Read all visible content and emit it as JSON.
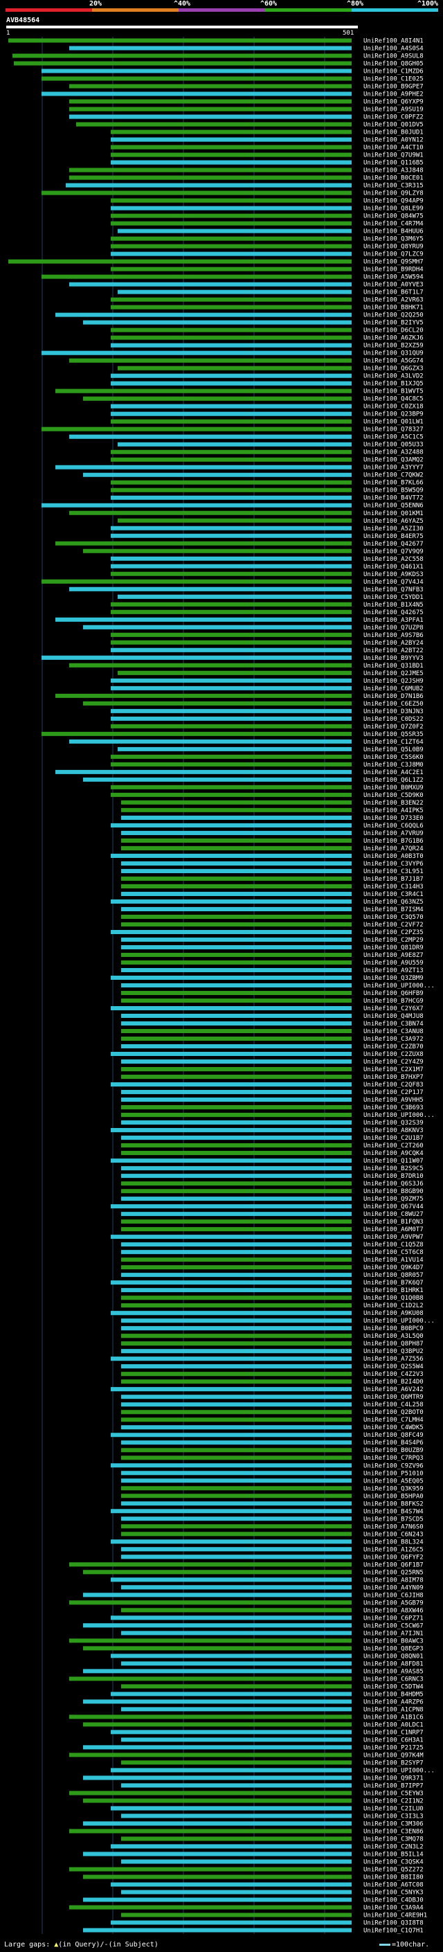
{
  "scale": {
    "labels": [
      "20%",
      "^40%",
      "^60%",
      "^80%",
      "^100%"
    ]
  },
  "colors": {
    "cyan": "#33c3d8",
    "green": "#2e9a1a",
    "grid": "#1f3f66",
    "marker": "#ffff66",
    "cyan_label": "#7fd8e8"
  },
  "query": {
    "title": "AVB48564",
    "start": "1",
    "end": "501"
  },
  "hits": [
    "UniRef100_A8I4N1",
    "UniRef100_A4S0S4",
    "UniRef100_A9SUL8",
    "UniRef100_Q8GH05",
    "UniRef100_C1MZD6",
    "UniRef100_C1E025",
    "UniRef100_B9GPE7",
    "UniRef100_A9PHE2",
    "UniRef100_Q6YXP9",
    "UniRef100_A9SU19",
    "UniRef100_C0PFZ2",
    "UniRef100_Q01DV5",
    "UniRef100_B0JUD1",
    "UniRef100_A0YN12",
    "UniRef100_A4CT10",
    "UniRef100_Q7U9W1",
    "UniRef100_Q116B5",
    "UniRef100_A3J848",
    "UniRef100_B0CE01",
    "UniRef100_C3R315",
    "UniRef100_Q9LZY8",
    "UniRef100_Q94AP9",
    "UniRef100_Q8LE99",
    "UniRef100_Q84W75",
    "UniRef100_C4R7M4",
    "UniRef100_B4HUU6",
    "UniRef100_Q3M6Y5",
    "UniRef100_Q8YRU9",
    "UniRef100_Q7LZC9",
    "UniRef100_Q9SMH7",
    "UniRef100_B9RDH4",
    "UniRef100_A5W594",
    "UniRef100_A0YVE3",
    "UniRef100_B6T1L7",
    "UniRef100_A2VR63",
    "UniRef100_B8HK71",
    "UniRef100_Q2Q250",
    "UniRef100_B2IYV5",
    "UniRef100_D6CL20",
    "UniRef100_A6ZKJ6",
    "UniRef100_B2XZ59",
    "UniRef100_Q31QU9",
    "UniRef100_A5GG74",
    "UniRef100_Q6GZX3",
    "UniRef100_A3LVD2",
    "UniRef100_B1XJQ5",
    "UniRef100_B1WVT5",
    "UniRef100_Q4C8C5",
    "UniRef100_C0ZX18",
    "UniRef100_Q23BP9",
    "UniRef100_Q01LW1",
    "UniRef100_Q78327",
    "UniRef100_A5C1C5",
    "UniRef100_Q05U33",
    "UniRef100_A3Z488",
    "UniRef100_Q3AMQ2",
    "UniRef100_A3YYY7",
    "UniRef100_C7QKW2",
    "UniRef100_B7KL66",
    "UniRef100_B5W5Q9",
    "UniRef100_B4VT72",
    "UniRef100_Q5ENN6",
    "UniRef100_Q01KM1",
    "UniRef100_A6YAZ5",
    "UniRef100_A5ZI30",
    "UniRef100_B4ER75",
    "UniRef100_Q42677",
    "UniRef100_Q7V9Q9",
    "UniRef100_A2C558",
    "UniRef100_Q461X1",
    "UniRef100_A9KDS3",
    "UniRef100_Q7V4J4",
    "UniRef100_Q7NFB3",
    "UniRef100_C5YDD1",
    "UniRef100_B1X4N5",
    "UniRef100_Q42675",
    "UniRef100_A3PFA1",
    "UniRef100_Q7UZP8",
    "UniRef100_A9S7B6",
    "UniRef100_A2BY24",
    "UniRef100_A2BT22",
    "UniRef100_B9YYV3",
    "UniRef100_Q31BD1",
    "UniRef100_Q2JME5",
    "UniRef100_Q2JSH9",
    "UniRef100_C6MUB2",
    "UniRef100_D7N1B6",
    "UniRef100_C6EZ50",
    "UniRef100_D3NJN3",
    "UniRef100_C0DS22",
    "UniRef100_Q7Z0F2",
    "UniRef100_Q5SR35",
    "UniRef100_C1ZT64",
    "UniRef100_Q5L0B9",
    "UniRef100_C5S6K0",
    "UniRef100_C3J8M0",
    "UniRef100_A4C2E1",
    "UniRef100_Q6L1Z2",
    "UniRef100_B0MXU9",
    "UniRef100_C5D9K0",
    "UniRef100_B3EN22",
    "UniRef100_A4IPK5",
    "UniRef100_D733E0",
    "UniRef100_C6QQL6",
    "UniRef100_A7VRU9",
    "UniRef100_B7G1B6",
    "UniRef100_A7QR24",
    "UniRef100_A0B3T0",
    "UniRef100_C3VYP6",
    "UniRef100_C3L951",
    "UniRef100_B7J1B7",
    "UniRef100_C314H3",
    "UniRef100_C3R4C1",
    "UniRef100_Q63NZ5",
    "UniRef100_B7ISM4",
    "UniRef100_C3Q570",
    "UniRef100_C2VF72",
    "UniRef100_C2PZ35",
    "UniRef100_C2MP29",
    "UniRef100_Q81DR9",
    "UniRef100_A9E8Z7",
    "UniRef100_A9U559",
    "UniRef100_A9ZT13",
    "UniRef100_Q3ZBM9",
    "UniRef100_UPI000...",
    "UniRef100_Q6HFB9",
    "UniRef100_B7HCG9",
    "UniRef100_C2Y6X7",
    "UniRef100_Q4MJU8",
    "UniRef100_C3BN74",
    "UniRef100_C3ANU8",
    "UniRef100_C3A972",
    "UniRef100_C2ZB70",
    "UniRef100_C2ZUX8",
    "UniRef100_C2Y4Z9",
    "UniRef100_C2X1M7",
    "UniRef100_B7HXP7",
    "UniRef100_C2QF83",
    "UniRef100_C2P1J7",
    "UniRef100_A9VHH5",
    "UniRef100_C3B693",
    "UniRef100_UPI000...",
    "UniRef100_Q32S39",
    "UniRef100_A8KNV3",
    "UniRef100_C2U1B7",
    "UniRef100_C2T260",
    "UniRef100_A9CQK4",
    "UniRef100_Q11W07",
    "UniRef100_B2S9C5",
    "UniRef100_B7DR10",
    "UniRef100_Q6S3J6",
    "UniRef100_B8GB90",
    "UniRef100_Q9ZM75",
    "UniRef100_Q67V44",
    "UniRef100_C8WU27",
    "UniRef100_B1FQN3",
    "UniRef100_A6M0T7",
    "UniRef100_A9VPW7",
    "UniRef100_C1Q5Z8",
    "UniRef100_C5T6C8",
    "UniRef100_A1VU14",
    "UniRef100_Q9K4D7",
    "UniRef100_Q8R057",
    "UniRef100_B7K6Q7",
    "UniRef100_B1HRK1",
    "UniRef100_Q1Q0B8",
    "UniRef100_C1D2L2",
    "UniRef100_A9KU08",
    "UniRef100_UPI000...",
    "UniRef100_B0BPC9",
    "UniRef100_A3L5Q0",
    "UniRef100_Q8PH87",
    "UniRef100_Q3BPU2",
    "UniRef100_A7Z556",
    "UniRef100_Q2S5W4",
    "UniRef100_C4Z2V3",
    "UniRef100_B2I4D0",
    "UniRef100_A6V242",
    "UniRef100_Q6MTR9",
    "UniRef100_C4L258",
    "UniRef100_Q2BOT0",
    "UniRef100_C7LMH4",
    "UniRef100_C4WDK5",
    "UniRef100_Q8FC49",
    "UniRef100_B4S4P6",
    "UniRef100_B0UZB9",
    "UniRef100_C7RPQ3",
    "UniRef100_C9ZV96",
    "UniRef100_P51010",
    "UniRef100_A5EQ05",
    "UniRef100_Q3K959",
    "UniRef100_B5HPA0",
    "UniRef100_B8FKS2",
    "UniRef100_B4S7W4",
    "UniRef100_B7SCD5",
    "UniRef100_A7N6S0",
    "UniRef100_C6N243",
    "UniRef100_B8L324",
    "UniRef100_A1Z6C5",
    "UniRef100_Q6FYF2",
    "UniRef100_Q6F1B7",
    "UniRef100_Q25RN5",
    "UniRef100_A8IM78",
    "UniRef100_A4YN09",
    "UniRef100_C6JIH8",
    "UniRef100_A5GB79",
    "UniRef100_A8XW46",
    "UniRef100_C6PZ71",
    "UniRef100_C5CW67",
    "UniRef100_A7IJN1",
    "UniRef100_B0AWC3",
    "UniRef100_Q8EGP3",
    "UniRef100_Q8QN01",
    "UniRef100_A8FD81",
    "UniRef100_A9AS85",
    "UniRef100_C6RNC3",
    "UniRef100_C5DTW4",
    "UniRef100_B4HDM5",
    "UniRef100_A4RZP6",
    "UniRef100_A1CPN8",
    "UniRef100_A1B1C6",
    "UniRef100_A0LDC1",
    "UniRef100_C1NRP7",
    "UniRef100_C6H3A1",
    "UniRef100_P21725",
    "UniRef100_Q97K4M",
    "UniRef100_B2SYP7",
    "UniRef100_UPI000...",
    "UniRef100_Q9R371",
    "UniRef100_B7IPP7",
    "UniRef100_C5EYW3",
    "UniRef100_C2I1N2",
    "UniRef100_C2ILU0",
    "UniRef100_C3I3L3",
    "UniRef100_C3M306",
    "UniRef100_C3EN86",
    "UniRef100_C3MQ78",
    "UniRef100_C2N3L2",
    "UniRef100_B5IL14",
    "UniRef100_C3QSK4",
    "UniRef100_Q5Z272",
    "UniRef100_B8II80",
    "UniRef100_A6TC08",
    "UniRef100_C5NYK3",
    "UniRef100_C4DBJ0",
    "UniRef100_C3A9A4",
    "UniRef100_C4RE9H1",
    "UniRef100_Q3I8T8",
    "UniRef100_C1Q7H1"
  ],
  "legend": {
    "gaps_label": "Large gaps:",
    "query_marker": "▲",
    "query_text": "(in Query)",
    "slash": "/",
    "subject_marker": "-",
    "subject_text": "(in Subject)",
    "scale_text": "=100char."
  }
}
